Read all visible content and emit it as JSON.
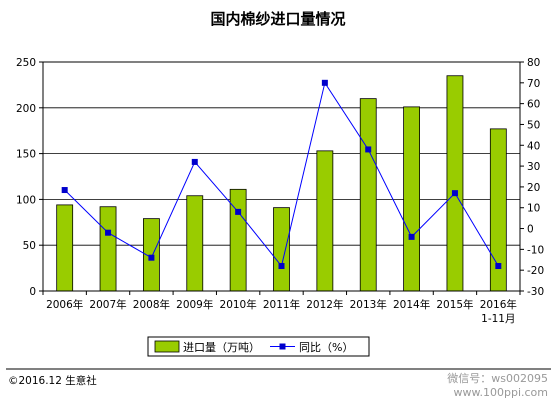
{
  "chart_data": {
    "type": "bar+line",
    "title": "国内棉纱进口量情况",
    "categories": [
      "2006年",
      "2007年",
      "2008年",
      "2009年",
      "2010年",
      "2011年",
      "2012年",
      "2013年",
      "2014年",
      "2015年",
      "2016年\n1-11月"
    ],
    "series": [
      {
        "name": "进口量（万吨）",
        "type": "bar",
        "axis": "left",
        "color": "#99cc00",
        "values": [
          94,
          92,
          79,
          104,
          111,
          91,
          153,
          210,
          201,
          235,
          177
        ]
      },
      {
        "name": "同比（%）",
        "type": "line",
        "axis": "right",
        "color": "#0000ff",
        "marker_color": "#0000cc",
        "values": [
          18.5,
          -2,
          -14,
          32,
          8,
          -18,
          70,
          38,
          -4,
          17,
          -18
        ]
      }
    ],
    "y_left": {
      "ylim": [
        0,
        250
      ],
      "ticks": [
        0,
        50,
        100,
        150,
        200,
        250
      ]
    },
    "y_right": {
      "ylim": [
        -30,
        80
      ],
      "ticks": [
        -30,
        -20,
        -10,
        0,
        10,
        20,
        30,
        40,
        50,
        60,
        70,
        80
      ]
    },
    "grid": "horizontal",
    "legend_position": "bottom"
  },
  "footer": {
    "copyright": "©2016.12 生意社",
    "watermark": "微信号：ws002095",
    "watermark_url": "www.100ppi.com"
  }
}
